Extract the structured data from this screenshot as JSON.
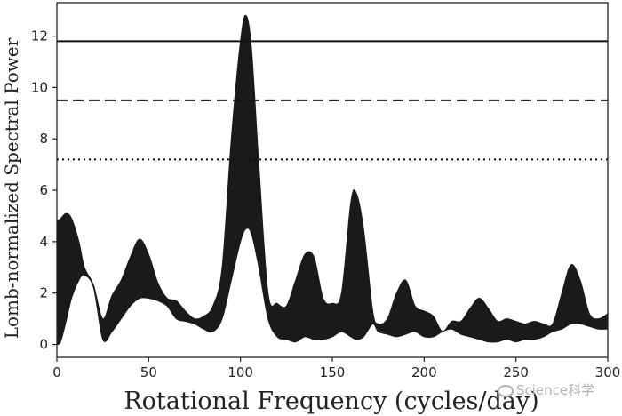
{
  "chart_data": {
    "type": "area",
    "xlabel": "Rotational Frequency (cycles/day)",
    "ylabel": "Lomb-normalized Spectral Power",
    "xlim": [
      0,
      300
    ],
    "ylim": [
      -0.5,
      13.3
    ],
    "xticks": [
      0,
      50,
      100,
      150,
      200,
      250,
      300
    ],
    "yticks": [
      0,
      2,
      4,
      6,
      8,
      10,
      12
    ],
    "grid": false,
    "band": {
      "fill_color": "#1a1a1a",
      "x": [
        0,
        2,
        5,
        8,
        12,
        15,
        20,
        25,
        30,
        35,
        40,
        45,
        50,
        55,
        60,
        65,
        70,
        75,
        80,
        85,
        90,
        95,
        100,
        103,
        106,
        110,
        115,
        120,
        125,
        130,
        135,
        140,
        145,
        150,
        155,
        160,
        163,
        167,
        172,
        175,
        180,
        185,
        190,
        195,
        200,
        205,
        210,
        215,
        220,
        225,
        230,
        235,
        240,
        245,
        250,
        255,
        260,
        265,
        270,
        275,
        280,
        285,
        290,
        295,
        300
      ],
      "upper": [
        4.8,
        4.9,
        5.1,
        4.9,
        4.0,
        3.0,
        2.3,
        1.0,
        1.9,
        2.5,
        3.4,
        4.1,
        3.5,
        2.4,
        1.8,
        1.7,
        1.3,
        1.0,
        1.1,
        1.5,
        3.0,
        8.0,
        11.8,
        12.8,
        11.5,
        7.0,
        2.0,
        1.6,
        1.5,
        2.5,
        3.5,
        3.4,
        1.8,
        1.6,
        2.0,
        5.5,
        5.9,
        4.5,
        1.3,
        0.8,
        1.0,
        2.0,
        2.5,
        1.5,
        1.3,
        1.1,
        0.5,
        0.9,
        0.9,
        1.4,
        1.8,
        1.4,
        0.9,
        1.0,
        0.9,
        0.8,
        0.9,
        0.8,
        0.8,
        2.0,
        3.1,
        2.5,
        1.2,
        1.0,
        1.2
      ],
      "lower": [
        0.0,
        0.1,
        0.9,
        1.8,
        2.5,
        2.7,
        2.2,
        0.2,
        0.5,
        1.0,
        1.5,
        1.8,
        1.8,
        1.7,
        1.5,
        1.0,
        0.9,
        0.8,
        0.6,
        0.5,
        1.0,
        2.5,
        4.0,
        4.5,
        4.3,
        3.0,
        1.0,
        0.3,
        0.2,
        0.1,
        0.3,
        0.2,
        0.2,
        0.3,
        0.5,
        0.3,
        0.2,
        0.3,
        0.8,
        0.5,
        0.4,
        0.3,
        0.4,
        0.5,
        0.3,
        0.3,
        0.5,
        0.6,
        0.4,
        0.3,
        0.2,
        0.1,
        0.1,
        0.2,
        0.1,
        0.2,
        0.2,
        0.3,
        0.5,
        0.6,
        0.8,
        0.8,
        0.7,
        0.6,
        0.6
      ]
    },
    "threshold_lines": [
      {
        "style": "solid",
        "y": 11.8
      },
      {
        "style": "dashed",
        "y": 9.5
      },
      {
        "style": "dotted",
        "y": 7.2
      }
    ]
  },
  "watermark": {
    "text": "Science科学"
  }
}
